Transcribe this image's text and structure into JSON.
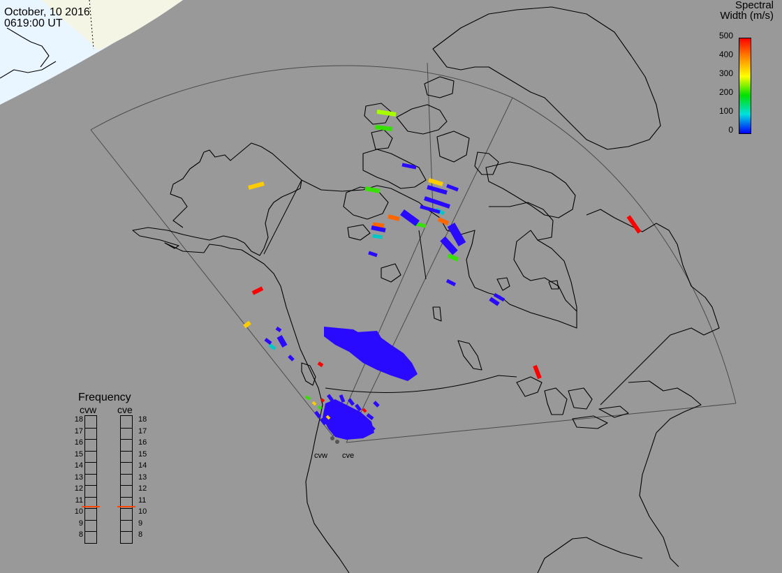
{
  "header": {
    "date": "October, 10 2016",
    "time": "0619:00 UT"
  },
  "colorbar": {
    "title_line1": "Spectral",
    "title_line2": "Width (m/s)",
    "ticks": [
      "500",
      "400",
      "300",
      "200",
      "100",
      "0"
    ],
    "range": [
      0,
      500
    ],
    "colors": [
      "#ff0000",
      "#ff8800",
      "#ffff00",
      "#00e000",
      "#00e0e0",
      "#0000ff"
    ]
  },
  "frequency_panel": {
    "title": "Frequency",
    "radars": [
      {
        "name": "cvw",
        "frequency_mhz": 10.6
      },
      {
        "name": "cve",
        "frequency_mhz": 10.6
      }
    ],
    "scale_labels": [
      "18",
      "17",
      "16",
      "15",
      "14",
      "13",
      "12",
      "11",
      "10",
      "9",
      "8"
    ],
    "indicator_color": "#ff4400"
  },
  "sites": [
    {
      "name": "cvw"
    },
    {
      "name": "cve"
    }
  ],
  "map": {
    "background_color": "#999999",
    "daylight_color": "#e6f4ff",
    "land_tint_color": "#f5f5e6",
    "scatter_colors": {
      "low": "#2a0aff",
      "mid_low": "#00c8c8",
      "mid": "#36e000",
      "mid_high": "#a8ff00",
      "high": "#ffcc00",
      "orange": "#ff6600",
      "max": "#ff0000"
    }
  }
}
